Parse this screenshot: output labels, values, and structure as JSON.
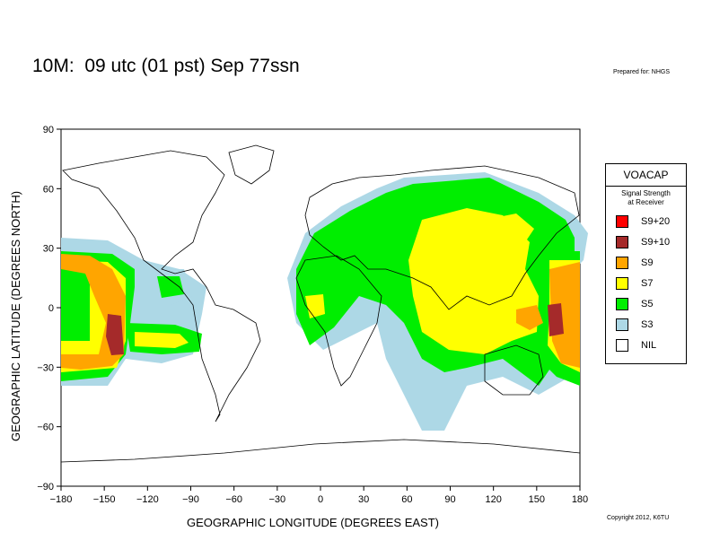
{
  "title": "10M:  09 utc (01 pst) Sep 77ssn",
  "prepared_for": "Prepared for: NHGS",
  "copyright": "Copyright 2012, K6TU",
  "x_axis_title": "GEOGRAPHIC LONGITUDE (DEGREES EAST)",
  "y_axis_title": "GEOGRAPHIC LATITUDE (DEGREES NORTH)",
  "x_ticks": [
    "−180",
    "−150",
    "−120",
    "−90",
    "−60",
    "−30",
    "0",
    "30",
    "60",
    "90",
    "120",
    "150",
    "180"
  ],
  "y_ticks": [
    "90",
    "60",
    "30",
    "0",
    "−30",
    "−60",
    "−90"
  ],
  "legend": {
    "title": "VOACAP",
    "subtitle_line1": "Signal Strength",
    "subtitle_line2": "at Receiver",
    "items": [
      {
        "label": "S9+20",
        "color": "#ff0000"
      },
      {
        "label": "S9+10",
        "color": "#a52a2a"
      },
      {
        "label": "S9",
        "color": "#ffa500"
      },
      {
        "label": "S7",
        "color": "#ffff00"
      },
      {
        "label": "S5",
        "color": "#00ee00"
      },
      {
        "label": "S3",
        "color": "#add8e6"
      },
      {
        "label": "NIL",
        "color": "#ffffff"
      }
    ]
  }
}
